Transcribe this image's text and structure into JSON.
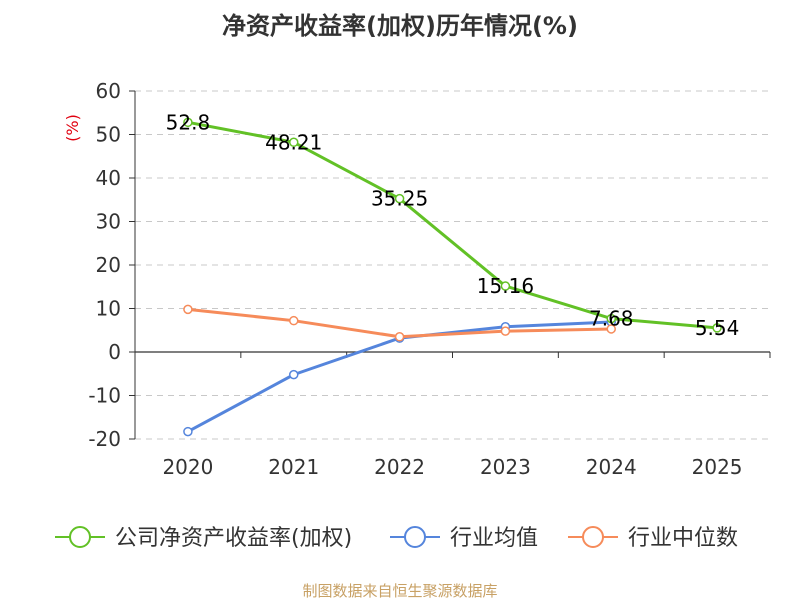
{
  "title": "净资产收益率(加权)历年情况(%)",
  "footer": "制图数据来自恒生聚源数据库",
  "chart_data": {
    "type": "line",
    "title": "净资产收益率(加权)历年情况(%)",
    "ylabel": "(%)",
    "ylim": [
      -20,
      60
    ],
    "yticks": [
      60,
      50,
      40,
      30,
      20,
      10,
      0,
      -10,
      -20
    ],
    "categories": [
      "2020",
      "2021",
      "2022",
      "2023",
      "2024",
      "2025"
    ],
    "grid": true,
    "legend_position": "bottom",
    "unit_color": "#e0000f",
    "series": [
      {
        "name": "公司净资产收益率(加权)",
        "color": "#62c126",
        "show_labels": true,
        "values": [
          52.8,
          48.21,
          35.25,
          15.16,
          7.68,
          5.54
        ],
        "labels": [
          "52.8",
          "48.21",
          "35.25",
          "15.16",
          "7.68",
          "5.54"
        ]
      },
      {
        "name": "行业均值",
        "color": "#5585dc",
        "show_labels": false,
        "values": [
          -18.3,
          -5.2,
          3.2,
          5.8,
          6.9,
          null
        ]
      },
      {
        "name": "行业中位数",
        "color": "#f68b5a",
        "show_labels": false,
        "values": [
          9.8,
          7.2,
          3.5,
          4.8,
          5.3,
          null
        ]
      }
    ]
  }
}
